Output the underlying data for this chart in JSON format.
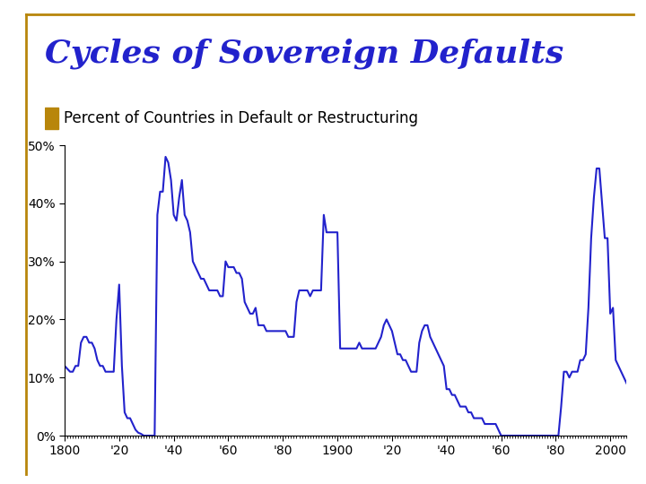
{
  "title": "Cycles of Sovereign Defaults",
  "subtitle": "Percent of Countries in Default or Restructuring",
  "title_color": "#2222CC",
  "subtitle_bullet_color": "#B8860B",
  "line_color": "#2222CC",
  "background_color": "#FFFFFF",
  "border_color": "#B8860B",
  "xlim": [
    1800,
    2006
  ],
  "ylim": [
    0,
    50
  ],
  "yticks": [
    0,
    10,
    20,
    30,
    40,
    50
  ],
  "ytick_labels": [
    "0%",
    "10%",
    "20%",
    "30%",
    "40%",
    "50%"
  ],
  "xtick_years": [
    1800,
    1820,
    1840,
    1860,
    1880,
    1900,
    1920,
    1940,
    1960,
    1980,
    2000
  ],
  "xtick_labels": [
    "1800",
    "'20",
    "'40",
    "'60",
    "'80",
    "1900",
    "'20",
    "'40",
    "'60",
    "'80",
    "2000"
  ],
  "series": [
    [
      1800,
      12
    ],
    [
      1801,
      11.5
    ],
    [
      1802,
      11
    ],
    [
      1803,
      11
    ],
    [
      1804,
      12
    ],
    [
      1805,
      12
    ],
    [
      1806,
      16
    ],
    [
      1807,
      17
    ],
    [
      1808,
      17
    ],
    [
      1809,
      16
    ],
    [
      1810,
      16
    ],
    [
      1811,
      15
    ],
    [
      1812,
      13
    ],
    [
      1813,
      12
    ],
    [
      1814,
      12
    ],
    [
      1815,
      11
    ],
    [
      1816,
      11
    ],
    [
      1817,
      11
    ],
    [
      1818,
      11
    ],
    [
      1819,
      20
    ],
    [
      1820,
      26
    ],
    [
      1821,
      12
    ],
    [
      1822,
      4
    ],
    [
      1823,
      3
    ],
    [
      1824,
      3
    ],
    [
      1825,
      2
    ],
    [
      1826,
      1
    ],
    [
      1827,
      0.5
    ],
    [
      1828,
      0.3
    ],
    [
      1829,
      0
    ],
    [
      1830,
      0
    ],
    [
      1831,
      0
    ],
    [
      1832,
      0
    ],
    [
      1833,
      0
    ],
    [
      1834,
      38
    ],
    [
      1835,
      42
    ],
    [
      1836,
      42
    ],
    [
      1837,
      48
    ],
    [
      1838,
      47
    ],
    [
      1839,
      44
    ],
    [
      1840,
      38
    ],
    [
      1841,
      37
    ],
    [
      1842,
      41
    ],
    [
      1843,
      44
    ],
    [
      1844,
      38
    ],
    [
      1845,
      37
    ],
    [
      1846,
      35
    ],
    [
      1847,
      30
    ],
    [
      1848,
      29
    ],
    [
      1849,
      28
    ],
    [
      1850,
      27
    ],
    [
      1851,
      27
    ],
    [
      1852,
      26
    ],
    [
      1853,
      25
    ],
    [
      1854,
      25
    ],
    [
      1855,
      25
    ],
    [
      1856,
      25
    ],
    [
      1857,
      24
    ],
    [
      1858,
      24
    ],
    [
      1859,
      30
    ],
    [
      1860,
      29
    ],
    [
      1861,
      29
    ],
    [
      1862,
      29
    ],
    [
      1863,
      28
    ],
    [
      1864,
      28
    ],
    [
      1865,
      27
    ],
    [
      1866,
      23
    ],
    [
      1867,
      22
    ],
    [
      1868,
      21
    ],
    [
      1869,
      21
    ],
    [
      1870,
      22
    ],
    [
      1871,
      19
    ],
    [
      1872,
      19
    ],
    [
      1873,
      19
    ],
    [
      1874,
      18
    ],
    [
      1875,
      18
    ],
    [
      1876,
      18
    ],
    [
      1877,
      18
    ],
    [
      1878,
      18
    ],
    [
      1879,
      18
    ],
    [
      1880,
      18
    ],
    [
      1881,
      18
    ],
    [
      1882,
      17
    ],
    [
      1883,
      17
    ],
    [
      1884,
      17
    ],
    [
      1885,
      23
    ],
    [
      1886,
      25
    ],
    [
      1887,
      25
    ],
    [
      1888,
      25
    ],
    [
      1889,
      25
    ],
    [
      1890,
      24
    ],
    [
      1891,
      25
    ],
    [
      1892,
      25
    ],
    [
      1893,
      25
    ],
    [
      1894,
      25
    ],
    [
      1895,
      38
    ],
    [
      1896,
      35
    ],
    [
      1897,
      35
    ],
    [
      1898,
      35
    ],
    [
      1899,
      35
    ],
    [
      1900,
      35
    ],
    [
      1901,
      15
    ],
    [
      1902,
      15
    ],
    [
      1903,
      15
    ],
    [
      1904,
      15
    ],
    [
      1905,
      15
    ],
    [
      1906,
      15
    ],
    [
      1907,
      15
    ],
    [
      1908,
      16
    ],
    [
      1909,
      15
    ],
    [
      1910,
      15
    ],
    [
      1911,
      15
    ],
    [
      1912,
      15
    ],
    [
      1913,
      15
    ],
    [
      1914,
      15
    ],
    [
      1915,
      16
    ],
    [
      1916,
      17
    ],
    [
      1917,
      19
    ],
    [
      1918,
      20
    ],
    [
      1919,
      19
    ],
    [
      1920,
      18
    ],
    [
      1921,
      16
    ],
    [
      1922,
      14
    ],
    [
      1923,
      14
    ],
    [
      1924,
      13
    ],
    [
      1925,
      13
    ],
    [
      1926,
      12
    ],
    [
      1927,
      11
    ],
    [
      1928,
      11
    ],
    [
      1929,
      11
    ],
    [
      1930,
      16
    ],
    [
      1931,
      18
    ],
    [
      1932,
      19
    ],
    [
      1933,
      19
    ],
    [
      1934,
      17
    ],
    [
      1935,
      16
    ],
    [
      1936,
      15
    ],
    [
      1937,
      14
    ],
    [
      1938,
      13
    ],
    [
      1939,
      12
    ],
    [
      1940,
      8
    ],
    [
      1941,
      8
    ],
    [
      1942,
      7
    ],
    [
      1943,
      7
    ],
    [
      1944,
      6
    ],
    [
      1945,
      5
    ],
    [
      1946,
      5
    ],
    [
      1947,
      5
    ],
    [
      1948,
      4
    ],
    [
      1949,
      4
    ],
    [
      1950,
      3
    ],
    [
      1951,
      3
    ],
    [
      1952,
      3
    ],
    [
      1953,
      3
    ],
    [
      1954,
      2
    ],
    [
      1955,
      2
    ],
    [
      1956,
      2
    ],
    [
      1957,
      2
    ],
    [
      1958,
      2
    ],
    [
      1959,
      1
    ],
    [
      1960,
      0
    ],
    [
      1961,
      0
    ],
    [
      1962,
      0
    ],
    [
      1963,
      0
    ],
    [
      1964,
      0
    ],
    [
      1965,
      0
    ],
    [
      1966,
      0
    ],
    [
      1967,
      0
    ],
    [
      1968,
      0
    ],
    [
      1969,
      0
    ],
    [
      1970,
      0
    ],
    [
      1971,
      0
    ],
    [
      1972,
      0
    ],
    [
      1973,
      0
    ],
    [
      1974,
      0
    ],
    [
      1975,
      0
    ],
    [
      1976,
      0
    ],
    [
      1977,
      0
    ],
    [
      1978,
      0
    ],
    [
      1979,
      0
    ],
    [
      1980,
      0
    ],
    [
      1981,
      0
    ],
    [
      1982,
      5
    ],
    [
      1983,
      11
    ],
    [
      1984,
      11
    ],
    [
      1985,
      10
    ],
    [
      1986,
      11
    ],
    [
      1987,
      11
    ],
    [
      1988,
      11
    ],
    [
      1989,
      13
    ],
    [
      1990,
      13
    ],
    [
      1991,
      14
    ],
    [
      1992,
      22
    ],
    [
      1993,
      34
    ],
    [
      1994,
      41
    ],
    [
      1995,
      46
    ],
    [
      1996,
      46
    ],
    [
      1997,
      40
    ],
    [
      1998,
      34
    ],
    [
      1999,
      34
    ],
    [
      2000,
      21
    ],
    [
      2001,
      22
    ],
    [
      2002,
      13
    ],
    [
      2003,
      12
    ],
    [
      2004,
      11
    ],
    [
      2005,
      10
    ],
    [
      2006,
      9
    ]
  ]
}
